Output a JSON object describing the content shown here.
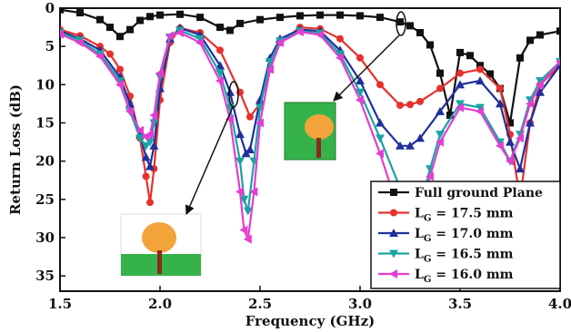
{
  "chart_data": {
    "type": "line",
    "xlabel": "Frequency (GHz)",
    "ylabel": "Return Loss (dB)",
    "xlim": [
      1.5,
      4.0
    ],
    "ylim": [
      0,
      37
    ],
    "y_inverted": true,
    "x_ticks": [
      "1.5",
      "2.0",
      "2.5",
      "3.0",
      "3.5",
      "4.0"
    ],
    "y_ticks": [
      "0",
      "5",
      "10",
      "15",
      "20",
      "25",
      "30",
      "35"
    ],
    "grid": false,
    "legend_position": "bottom-right",
    "series": [
      {
        "name": "Full ground Plane",
        "color": "#111111",
        "marker": "square",
        "x": [
          1.5,
          1.6,
          1.7,
          1.75,
          1.8,
          1.85,
          1.9,
          1.95,
          2.0,
          2.1,
          2.2,
          2.3,
          2.35,
          2.4,
          2.5,
          2.6,
          2.7,
          2.8,
          2.9,
          3.0,
          3.1,
          3.2,
          3.25,
          3.3,
          3.35,
          3.4,
          3.45,
          3.5,
          3.55,
          3.6,
          3.65,
          3.7,
          3.75,
          3.8,
          3.85,
          3.9,
          4.0
        ],
        "y": [
          0.2,
          0.6,
          1.5,
          2.5,
          3.7,
          2.8,
          1.6,
          1.1,
          0.9,
          0.8,
          1.2,
          2.5,
          2.9,
          2.0,
          1.5,
          1.2,
          1.0,
          0.9,
          0.9,
          1.0,
          1.2,
          1.8,
          2.3,
          3.2,
          4.8,
          8.5,
          14.0,
          5.8,
          6.2,
          7.5,
          8.6,
          10.5,
          15.0,
          6.5,
          4.2,
          3.5,
          3.0
        ]
      },
      {
        "name": "L_G = 17.5 mm",
        "color": "#e5322e",
        "marker": "circle",
        "x": [
          1.5,
          1.6,
          1.7,
          1.75,
          1.8,
          1.85,
          1.9,
          1.93,
          1.95,
          1.97,
          2.0,
          2.05,
          2.1,
          2.2,
          2.3,
          2.4,
          2.45,
          2.5,
          2.55,
          2.6,
          2.7,
          2.8,
          2.9,
          3.0,
          3.1,
          3.2,
          3.25,
          3.3,
          3.4,
          3.5,
          3.6,
          3.7,
          3.75,
          3.8,
          3.85,
          3.9,
          4.0
        ],
        "y": [
          2.8,
          3.6,
          5.0,
          6.0,
          8.0,
          11.5,
          17.0,
          22.0,
          25.4,
          21.0,
          12.0,
          4.5,
          2.6,
          3.2,
          5.5,
          11.0,
          14.2,
          12.5,
          8.0,
          4.5,
          2.5,
          2.7,
          4.0,
          6.5,
          10.0,
          12.7,
          12.6,
          12.2,
          10.5,
          8.5,
          8.0,
          10.5,
          16.5,
          25.0,
          15.0,
          10.0,
          7.5
        ]
      },
      {
        "name": "L_G = 17.0 mm",
        "color": "#1f2f9c",
        "marker": "triangle-up",
        "x": [
          1.5,
          1.6,
          1.7,
          1.8,
          1.85,
          1.9,
          1.93,
          1.95,
          1.97,
          2.0,
          2.05,
          2.1,
          2.2,
          2.3,
          2.35,
          2.4,
          2.43,
          2.45,
          2.5,
          2.55,
          2.6,
          2.7,
          2.8,
          2.9,
          3.0,
          3.1,
          3.2,
          3.25,
          3.3,
          3.4,
          3.5,
          3.6,
          3.7,
          3.75,
          3.8,
          3.85,
          3.9,
          4.0
        ],
        "y": [
          3.0,
          4.0,
          5.5,
          9.0,
          12.5,
          16.5,
          19.5,
          20.7,
          18.0,
          10.5,
          4.0,
          2.6,
          3.5,
          7.5,
          11.0,
          16.5,
          19.0,
          18.5,
          12.0,
          6.5,
          4.0,
          2.8,
          3.0,
          5.5,
          9.5,
          15.0,
          18.0,
          18.0,
          17.0,
          13.5,
          10.0,
          9.5,
          12.5,
          17.5,
          21.0,
          15.0,
          11.0,
          7.5
        ]
      },
      {
        "name": "L_G = 16.5 mm",
        "color": "#1aa3a3",
        "marker": "triangle-down",
        "x": [
          1.5,
          1.6,
          1.7,
          1.8,
          1.85,
          1.9,
          1.93,
          1.95,
          1.97,
          2.0,
          2.05,
          2.1,
          2.2,
          2.3,
          2.35,
          2.4,
          2.42,
          2.44,
          2.47,
          2.5,
          2.55,
          2.6,
          2.7,
          2.8,
          2.9,
          3.0,
          3.1,
          3.2,
          3.3,
          3.35,
          3.4,
          3.5,
          3.6,
          3.7,
          3.75,
          3.8,
          3.85,
          3.9,
          4.0
        ],
        "y": [
          3.2,
          4.2,
          6.0,
          9.5,
          13.5,
          17.0,
          18.0,
          17.5,
          15.0,
          9.0,
          3.8,
          2.9,
          4.0,
          8.5,
          13.0,
          20.0,
          25.0,
          26.5,
          20.0,
          13.0,
          7.0,
          4.3,
          3.0,
          3.3,
          6.0,
          11.0,
          17.0,
          23.5,
          26.0,
          21.0,
          16.5,
          12.5,
          13.0,
          17.5,
          20.0,
          16.5,
          12.0,
          9.5,
          7.0
        ]
      },
      {
        "name": "L_G = 16.0 mm",
        "color": "#e23ed1",
        "marker": "triangle-left",
        "x": [
          1.5,
          1.6,
          1.7,
          1.8,
          1.85,
          1.9,
          1.93,
          1.95,
          1.97,
          2.0,
          2.05,
          2.1,
          2.2,
          2.3,
          2.35,
          2.4,
          2.42,
          2.44,
          2.47,
          2.5,
          2.55,
          2.6,
          2.7,
          2.8,
          2.9,
          3.0,
          3.1,
          3.2,
          3.3,
          3.35,
          3.4,
          3.5,
          3.6,
          3.7,
          3.75,
          3.8,
          3.85,
          3.9,
          4.0
        ],
        "y": [
          3.4,
          4.5,
          6.3,
          10.0,
          13.5,
          16.0,
          16.8,
          16.5,
          14.0,
          8.5,
          3.6,
          3.2,
          4.5,
          9.5,
          14.5,
          24.0,
          29.0,
          30.2,
          24.0,
          15.0,
          8.0,
          4.5,
          3.1,
          3.5,
          6.5,
          12.0,
          19.0,
          27.0,
          27.5,
          22.0,
          17.5,
          13.0,
          13.5,
          18.0,
          20.0,
          17.0,
          12.5,
          10.0,
          7.0
        ]
      }
    ]
  }
}
